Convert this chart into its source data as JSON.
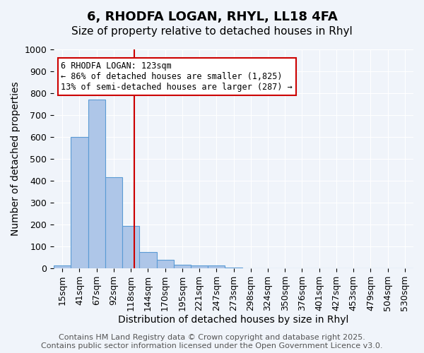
{
  "title1": "6, RHODFA LOGAN, RHYL, LL18 4FA",
  "title2": "Size of property relative to detached houses in Rhyl",
  "xlabel": "Distribution of detached houses by size in Rhyl",
  "ylabel": "Number of detached properties",
  "bin_labels": [
    "15sqm",
    "41sqm",
    "67sqm",
    "92sqm",
    "118sqm",
    "144sqm",
    "170sqm",
    "195sqm",
    "221sqm",
    "247sqm",
    "273sqm",
    "298sqm",
    "324sqm",
    "350sqm",
    "376sqm",
    "401sqm",
    "427sqm",
    "453sqm",
    "479sqm",
    "504sqm",
    "530sqm"
  ],
  "bar_values": [
    15,
    600,
    770,
    415,
    195,
    75,
    38,
    18,
    15,
    12,
    5,
    0,
    0,
    0,
    0,
    0,
    0,
    0,
    0,
    0,
    0
  ],
  "bar_color": "#aec6e8",
  "bar_edge_color": "#5b9bd5",
  "ylim": [
    0,
    1000
  ],
  "yticks": [
    0,
    100,
    200,
    300,
    400,
    500,
    600,
    700,
    800,
    900,
    1000
  ],
  "property_size": 123,
  "annotation_text": "6 RHODFA LOGAN: 123sqm\n← 86% of detached houses are smaller (1,825)\n13% of semi-detached houses are larger (287) →",
  "annotation_box_color": "#ffffff",
  "annotation_box_edge_color": "#cc0000",
  "red_line_color": "#cc0000",
  "footer1": "Contains HM Land Registry data © Crown copyright and database right 2025.",
  "footer2": "Contains public sector information licensed under the Open Government Licence v3.0.",
  "background_color": "#f0f4fa",
  "grid_color": "#ffffff",
  "title_fontsize": 13,
  "subtitle_fontsize": 11,
  "axis_label_fontsize": 10,
  "tick_fontsize": 9,
  "footer_fontsize": 8
}
